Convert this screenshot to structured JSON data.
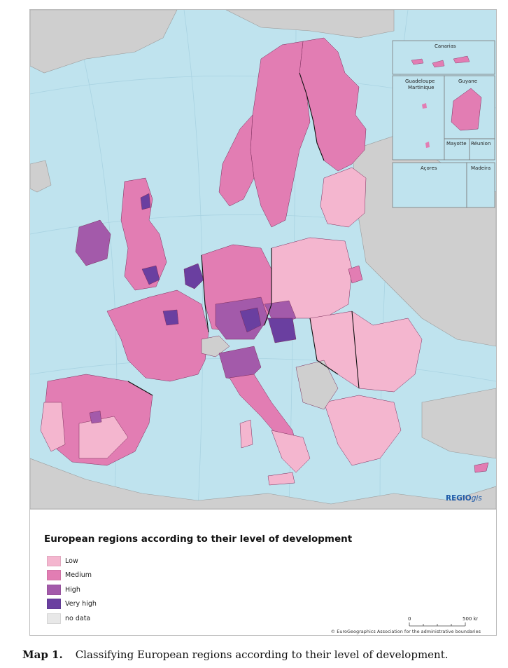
{
  "map": {
    "legend_title": "European regions according to their level of development",
    "legend": [
      {
        "label": "Low",
        "color": "#f4b6cf"
      },
      {
        "label": "Medium",
        "color": "#e27db3"
      },
      {
        "label": "High",
        "color": "#a35aaa"
      },
      {
        "label": "Very high",
        "color": "#6a3fa0"
      },
      {
        "label": "no data",
        "color": "#e8e8e8"
      }
    ],
    "insets": {
      "canarias": "Canarias",
      "guadeloupe": "Guadeloupe",
      "martinique": "Martinique",
      "guyane": "Guyane",
      "mayotte": "Mayotte",
      "reunion": "Réunion",
      "acores": "Açores",
      "madeira": "Madeira"
    },
    "brand": {
      "a": "REGIO",
      "b": "gis"
    },
    "scale": {
      "start": "0",
      "end": "500 km"
    },
    "copyright": "© EuroGeographics Association for the administrative boundaries",
    "colors": {
      "sea": "#bfe3ee",
      "land_outside": "#cfcfcf",
      "border": "#111111"
    }
  },
  "caption": {
    "label": "Map 1.",
    "text": "Classifying European regions according to their level of development."
  }
}
